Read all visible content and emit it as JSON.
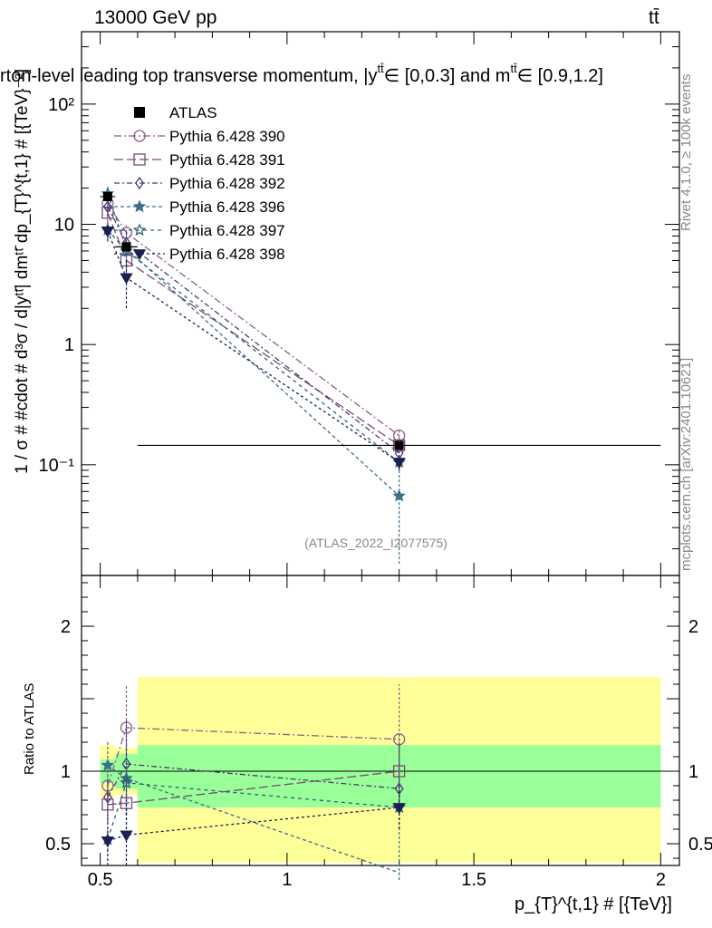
{
  "header": {
    "energy_label": "13000 GeV pp",
    "process_label": "tt̄",
    "title": "rton-level leading top transverse momentum, |y",
    "title_sup": "tt̄",
    "title_cont": "∈ [0,0.3] and m",
    "title_sup2": "tt̄",
    "title_end": "∈ [0.9,1.2]"
  },
  "side_text": {
    "rivet": "Rivet 4.1.0, ≥ 100k events",
    "mcplots": "mcplots.cern.ch [arXiv:2401.10621]"
  },
  "watermark": "(ATLAS_2022_I2077575)",
  "chart_data": {
    "type": "line",
    "ylabel_main": "1 / σ # #cdot # d³σ / d|yᵗᵗ̄| dmᵗᵗ̄ dp_{T}^{t,1} # [{TeV}⁻²]",
    "ylabel_ratio": "Ratio to ATLAS",
    "xlabel": "p_{T}^{t,1} # [{TeV}]",
    "xlim": [
      0.45,
      2.05
    ],
    "xticks": [
      0.5,
      1,
      1.5,
      2
    ],
    "xtick_labels": [
      "0.5",
      "1",
      "1.5",
      "2"
    ],
    "ylim_main": [
      0.012,
      400
    ],
    "yticks_main_labels": [
      "10⁻¹",
      "1",
      "10",
      "10²"
    ],
    "ylim_ratio": [
      0.35,
      2.35
    ],
    "yticks_ratio": [
      0.5,
      1,
      2
    ],
    "yticks_ratio_labels": [
      "0.5",
      "1",
      "2"
    ],
    "data": {
      "name": "ATLAS",
      "x": [
        0.52,
        0.57,
        1.3
      ],
      "y": [
        17.0,
        6.5,
        0.145
      ],
      "bins": [
        [
          0.5,
          0.54
        ],
        [
          0.54,
          0.6
        ],
        [
          0.6,
          2.0
        ]
      ],
      "band_inner": [
        [
          0.92,
          1.08
        ],
        [
          0.88,
          1.12
        ],
        [
          0.75,
          1.18
        ]
      ],
      "band_outer": [
        [
          0.82,
          1.18
        ],
        [
          0.84,
          1.16
        ],
        [
          0.37,
          1.65
        ]
      ]
    },
    "series": [
      {
        "name": "Pythia 6.428 390",
        "marker": "circle-open",
        "color": "#8b5e8a",
        "dash": "8,3,2,3",
        "x": [
          0.52,
          0.57,
          1.3
        ],
        "y": [
          15.0,
          8.5,
          0.175
        ],
        "ratio": [
          0.9,
          1.3,
          1.22
        ],
        "yerr_lo": [
          12.0,
          6.6,
          0.155
        ],
        "yerr_hi": [
          18.0,
          10.0,
          0.2
        ],
        "rerr": [
          [
            0.8,
            1.0
          ],
          [
            1.1,
            1.6
          ],
          [
            0.9,
            1.6
          ]
        ]
      },
      {
        "name": "Pythia 6.428 391",
        "marker": "square-open",
        "color": "#7b4a73",
        "dash": "10,4",
        "x": [
          0.52,
          0.57,
          1.3
        ],
        "y": [
          12.5,
          5.0,
          0.145
        ],
        "ratio": [
          0.77,
          0.78,
          1.0
        ],
        "yerr_lo": [
          10.5,
          3.8,
          0.125
        ],
        "yerr_hi": [
          15.0,
          6.3,
          0.168
        ],
        "rerr": [
          [
            0.65,
            0.9
          ],
          [
            0.6,
            0.95
          ],
          [
            0.8,
            1.25
          ]
        ]
      },
      {
        "name": "Pythia 6.428 392",
        "marker": "diamond-open",
        "color": "#4a3a7a",
        "dash": "6,3,2,3",
        "x": [
          0.52,
          0.57,
          1.3
        ],
        "y": [
          14.0,
          7.0,
          0.125
        ],
        "ratio": [
          0.82,
          1.05,
          0.88
        ],
        "yerr_lo": [
          11.5,
          5.3,
          0.105
        ],
        "yerr_hi": [
          16.5,
          8.7,
          0.145
        ],
        "rerr": [
          [
            0.7,
            0.95
          ],
          [
            0.8,
            1.35
          ],
          [
            0.6,
            1.2
          ]
        ]
      },
      {
        "name": "Pythia 6.428 396",
        "marker": "star-filled",
        "color": "#3a6f86",
        "dash": "4,3",
        "x": [
          0.52,
          0.57,
          1.3
        ],
        "y": [
          18.0,
          6.3,
          0.055
        ],
        "ratio": [
          1.04,
          0.95,
          0.3
        ],
        "yerr_lo": [
          15.0,
          4.8,
          0.015
        ],
        "yerr_hi": [
          21.0,
          7.8,
          0.095
        ],
        "rerr": [
          [
            0.9,
            1.2
          ],
          [
            0.7,
            1.2
          ],
          [
            0.1,
            0.6
          ]
        ]
      },
      {
        "name": "Pythia 6.428 397",
        "marker": "star-open",
        "color": "#2f5f7a",
        "dash": "4,4",
        "x": [
          0.52,
          0.57,
          1.3
        ],
        "y": [
          9.0,
          6.0,
          0.105
        ],
        "ratio": [
          0.53,
          0.92,
          0.75
        ],
        "yerr_lo": [
          7.5,
          4.5,
          0.09
        ],
        "yerr_hi": [
          10.5,
          7.5,
          0.12
        ],
        "rerr": [
          [
            0.45,
            0.6
          ],
          [
            0.7,
            1.15
          ],
          [
            0.6,
            0.9
          ]
        ]
      },
      {
        "name": "Pythia 6.428 398",
        "marker": "triangle-down-filled",
        "color": "#1a2050",
        "dash": "3,3",
        "x": [
          0.52,
          0.57,
          1.3
        ],
        "y": [
          8.8,
          3.6,
          0.105
        ],
        "ratio": [
          0.52,
          0.56,
          0.75
        ],
        "yerr_lo": [
          7.2,
          2.0,
          0.09
        ],
        "yerr_hi": [
          10.4,
          5.2,
          0.12
        ],
        "rerr": [
          [
            0.35,
            0.7
          ],
          [
            0.35,
            0.8
          ],
          [
            0.6,
            0.9
          ]
        ]
      }
    ]
  },
  "colors": {
    "band_inner": "#99ff99",
    "band_outer": "#ffff99",
    "data_marker": "#000000"
  }
}
